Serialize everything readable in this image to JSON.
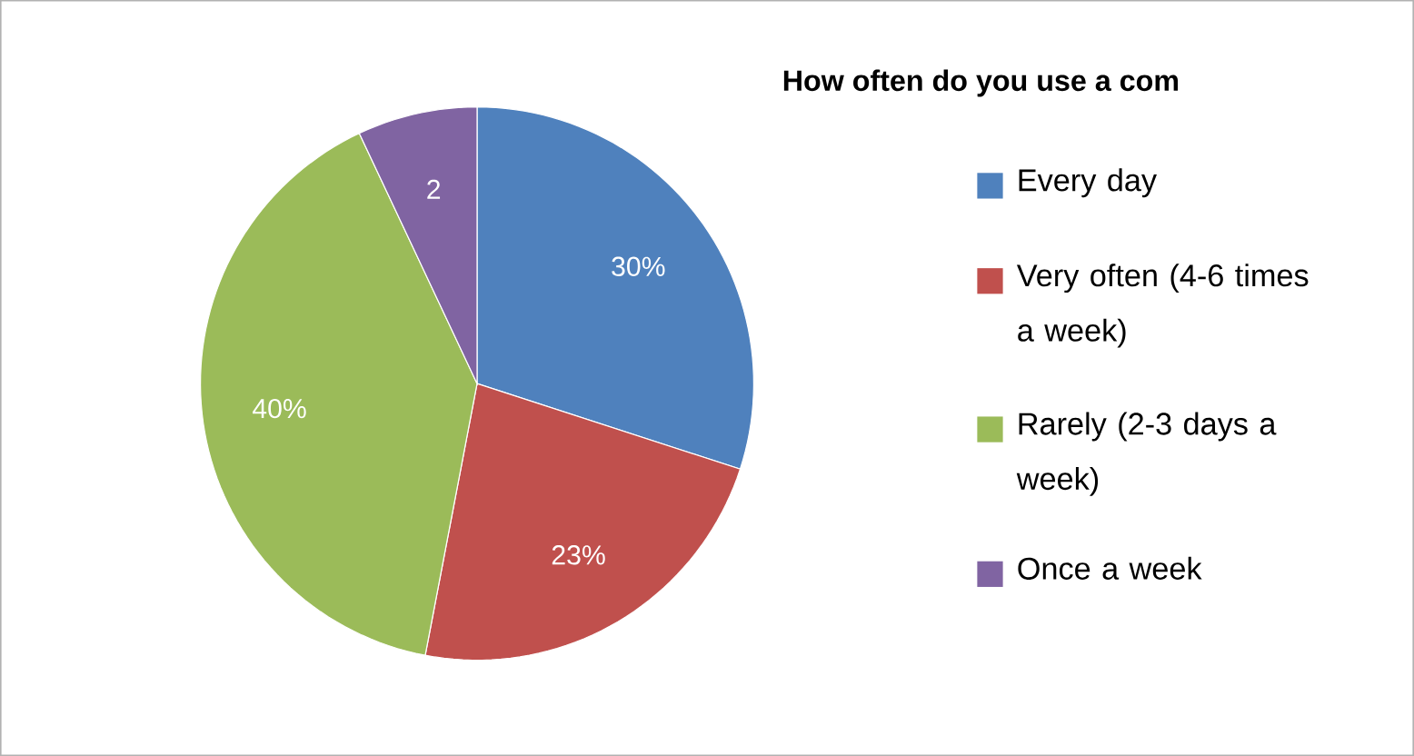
{
  "chart_data": {
    "type": "pie",
    "title": "How often do you use a com",
    "categories": [
      "Every day",
      "Very often (4-6 times a week)",
      "Rarely (2-3 days a week)",
      "Once a week"
    ],
    "values": [
      30,
      23,
      40,
      7
    ],
    "colors": [
      "#4f81bd",
      "#c0504d",
      "#9bbb59",
      "#8064a2"
    ],
    "value_labels": [
      "30%",
      "23%",
      "40%",
      null
    ],
    "annotations": [
      "2"
    ],
    "legend": "right"
  }
}
